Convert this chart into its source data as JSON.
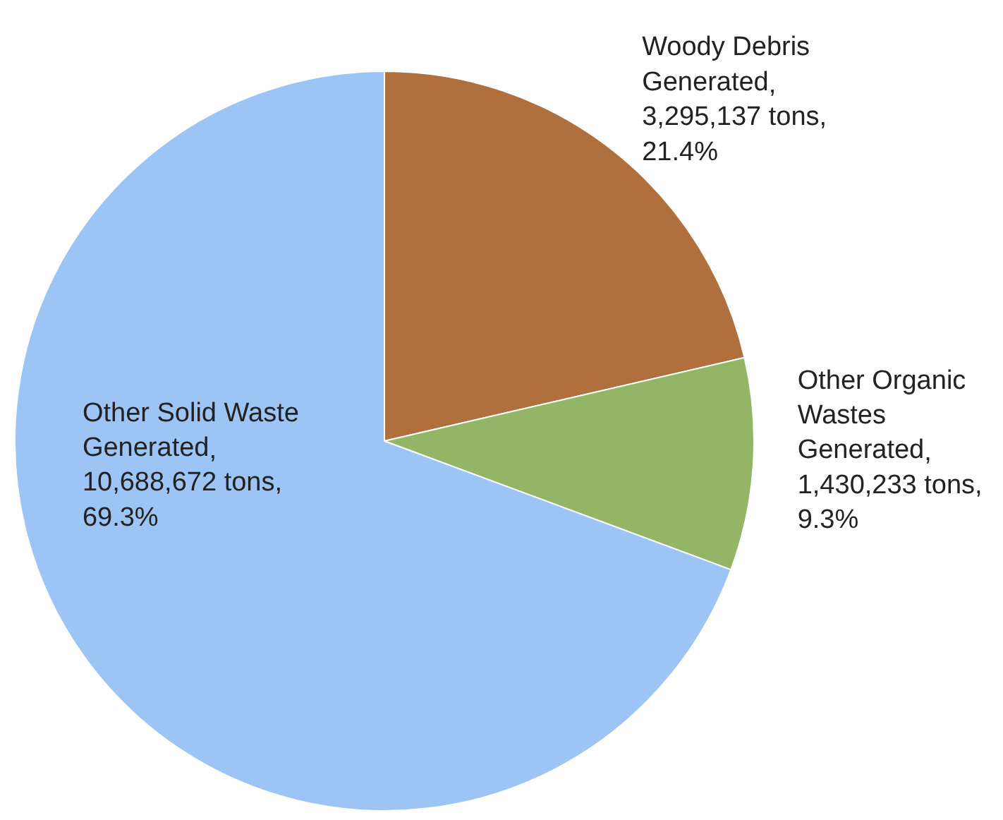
{
  "chart_data": {
    "type": "pie",
    "categories": [
      "Woody Debris\nGenerated",
      "Other Organic\nWastes\nGenerated",
      "Other Solid Waste\nGenerated"
    ],
    "values": [
      3295137,
      1430233,
      10688672
    ],
    "value_labels": [
      ",\n3,295,137 tons,\n21.4%",
      ",\n1,430,233 tons,\n9.3%",
      ",\n10,688,672 tons,\n69.3%"
    ],
    "colors": [
      "#b0703e",
      "#93b566",
      "#9cc4f4"
    ],
    "legend": false
  }
}
